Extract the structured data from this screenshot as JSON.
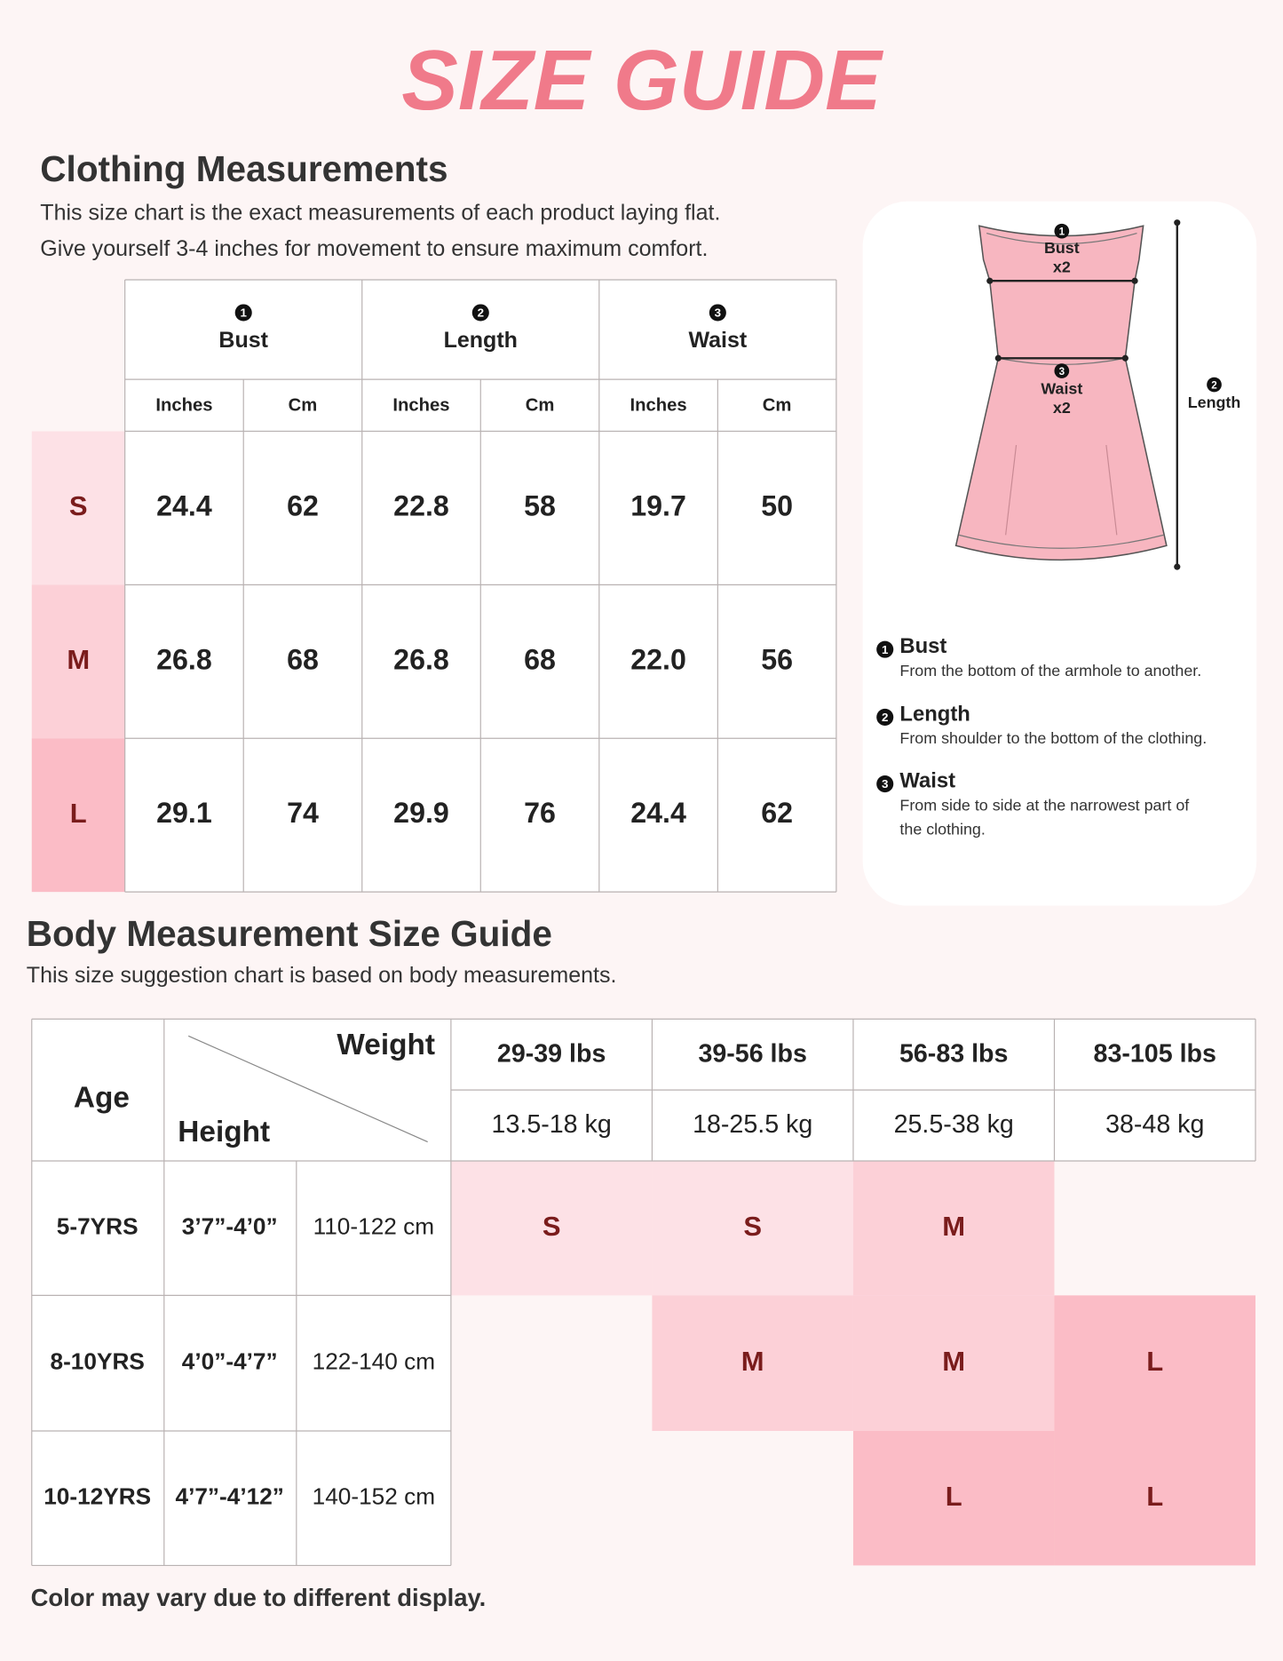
{
  "title": "SIZE GUIDE",
  "size_colors": {
    "S": "#fde1e6",
    "M": "#fcd0d7",
    "L": "#fbbcc6"
  },
  "clothing": {
    "heading": "Clothing Measurements",
    "description": [
      "This size chart is the exact measurements of each product laying flat.",
      "Give yourself 3-4 inches for movement to ensure maximum comfort."
    ],
    "table": {
      "measures": [
        {
          "number": "1",
          "name": "Bust"
        },
        {
          "number": "2",
          "name": "Length"
        },
        {
          "number": "3",
          "name": "Waist"
        }
      ],
      "units": [
        "Inches",
        "Cm"
      ],
      "rows": [
        {
          "size": "S",
          "values": [
            "24.4",
            "62",
            "22.8",
            "58",
            "19.7",
            "50"
          ]
        },
        {
          "size": "M",
          "values": [
            "26.8",
            "68",
            "26.8",
            "68",
            "22.0",
            "56"
          ]
        },
        {
          "size": "L",
          "values": [
            "29.1",
            "74",
            "29.9",
            "76",
            "24.4",
            "62"
          ]
        }
      ]
    }
  },
  "diagram": {
    "multiplier": "x2"
  },
  "legend": [
    {
      "description": [
        "From the bottom of the armhole to another."
      ]
    },
    {
      "description": [
        "From shoulder to the bottom of the clothing."
      ]
    },
    {
      "description": [
        "From side to side at the narrowest part of",
        "the clothing."
      ]
    }
  ],
  "body": {
    "heading": "Body Measurement Size Guide",
    "description": "This size suggestion chart is based on body measurements.",
    "headers": {
      "age": "Age",
      "weight": "Weight",
      "height": "Height"
    },
    "weights_lbs": [
      "29-39 lbs",
      "39-56 lbs",
      "56-83 lbs",
      "83-105 lbs"
    ],
    "weights_kg": [
      "13.5-18 kg",
      "18-25.5 kg",
      "25.5-38 kg",
      "38-48 kg"
    ],
    "rows": [
      {
        "age": "5-7YRS",
        "height_in": "3’7”-4’0”",
        "height_cm": "110-122 cm",
        "sizes": [
          "S",
          "S",
          "M",
          null
        ]
      },
      {
        "age": "8-10YRS",
        "height_in": "4’0”-4’7”",
        "height_cm": "122-140 cm",
        "sizes": [
          null,
          "M",
          "M",
          "L"
        ]
      },
      {
        "age": "10-12YRS",
        "height_in": "4’7”-4’12”",
        "height_cm": "140-152 cm",
        "sizes": [
          null,
          null,
          "L",
          "L"
        ]
      }
    ]
  },
  "note": "Color may vary due to different display."
}
